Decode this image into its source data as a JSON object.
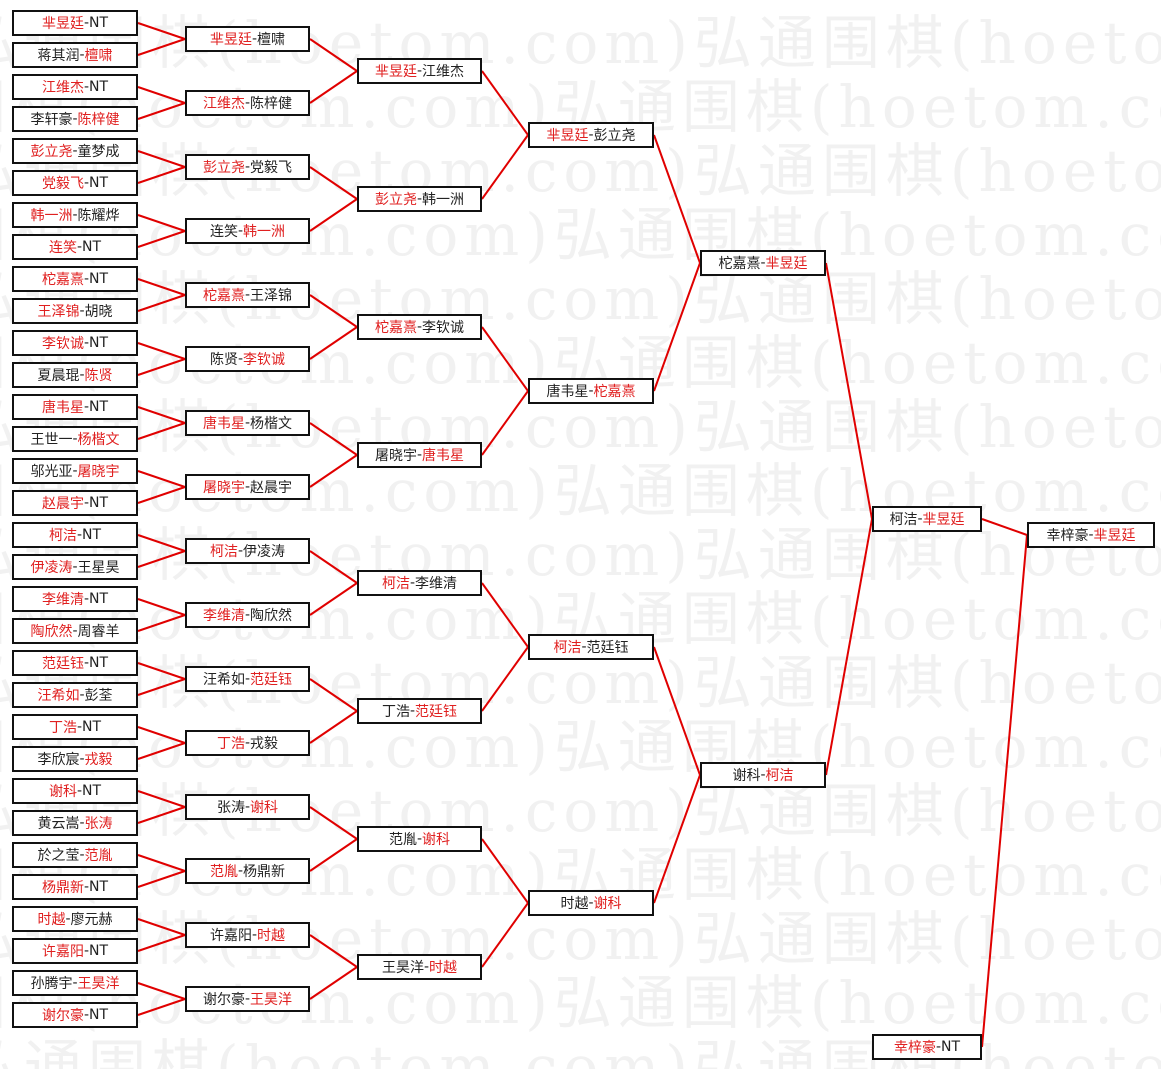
{
  "watermark": "弘通围棋(hoetom.com)弘通围棋(hoetom.com)",
  "separator": "-",
  "colors": {
    "winner": "#e02020",
    "loser": "#222222",
    "line": "#e00000",
    "border": "#111111"
  },
  "rounds": [
    [
      {
        "players": [
          "芈昱廷",
          "NT"
        ],
        "winner": 0
      },
      {
        "players": [
          "蒋其润",
          "檀啸"
        ],
        "winner": 1
      },
      {
        "players": [
          "江维杰",
          "NT"
        ],
        "winner": 0
      },
      {
        "players": [
          "李轩豪",
          "陈梓健"
        ],
        "winner": 1
      },
      {
        "players": [
          "彭立尧",
          "童梦成"
        ],
        "winner": 0
      },
      {
        "players": [
          "党毅飞",
          "NT"
        ],
        "winner": 0
      },
      {
        "players": [
          "韩一洲",
          "陈耀烨"
        ],
        "winner": 0
      },
      {
        "players": [
          "连笑",
          "NT"
        ],
        "winner": 0
      },
      {
        "players": [
          "柁嘉熹",
          "NT"
        ],
        "winner": 0
      },
      {
        "players": [
          "王泽锦",
          "胡晓"
        ],
        "winner": 0
      },
      {
        "players": [
          "李钦诚",
          "NT"
        ],
        "winner": 0
      },
      {
        "players": [
          "夏晨琨",
          "陈贤"
        ],
        "winner": 1
      },
      {
        "players": [
          "唐韦星",
          "NT"
        ],
        "winner": 0
      },
      {
        "players": [
          "王世一",
          "杨楷文"
        ],
        "winner": 1
      },
      {
        "players": [
          "邬光亚",
          "屠晓宇"
        ],
        "winner": 1
      },
      {
        "players": [
          "赵晨宇",
          "NT"
        ],
        "winner": 0
      },
      {
        "players": [
          "柯洁",
          "NT"
        ],
        "winner": 0
      },
      {
        "players": [
          "伊凌涛",
          "王星昊"
        ],
        "winner": 0
      },
      {
        "players": [
          "李维清",
          "NT"
        ],
        "winner": 0
      },
      {
        "players": [
          "陶欣然",
          "周睿羊"
        ],
        "winner": 0
      },
      {
        "players": [
          "范廷钰",
          "NT"
        ],
        "winner": 0
      },
      {
        "players": [
          "汪希如",
          "彭荃"
        ],
        "winner": 0
      },
      {
        "players": [
          "丁浩",
          "NT"
        ],
        "winner": 0
      },
      {
        "players": [
          "李欣宸",
          "戎毅"
        ],
        "winner": 1
      },
      {
        "players": [
          "谢科",
          "NT"
        ],
        "winner": 0
      },
      {
        "players": [
          "黄云嵩",
          "张涛"
        ],
        "winner": 1
      },
      {
        "players": [
          "於之莹",
          "范胤"
        ],
        "winner": 1
      },
      {
        "players": [
          "杨鼎新",
          "NT"
        ],
        "winner": 0
      },
      {
        "players": [
          "时越",
          "廖元赫"
        ],
        "winner": 0
      },
      {
        "players": [
          "许嘉阳",
          "NT"
        ],
        "winner": 0
      },
      {
        "players": [
          "孙腾宇",
          "王昊洋"
        ],
        "winner": 1
      },
      {
        "players": [
          "谢尔豪",
          "NT"
        ],
        "winner": 0
      }
    ],
    [
      {
        "players": [
          "芈昱廷",
          "檀啸"
        ],
        "winner": 0
      },
      {
        "players": [
          "江维杰",
          "陈梓健"
        ],
        "winner": 0
      },
      {
        "players": [
          "彭立尧",
          "党毅飞"
        ],
        "winner": 0
      },
      {
        "players": [
          "连笑",
          "韩一洲"
        ],
        "winner": 1
      },
      {
        "players": [
          "柁嘉熹",
          "王泽锦"
        ],
        "winner": 0
      },
      {
        "players": [
          "陈贤",
          "李钦诚"
        ],
        "winner": 1
      },
      {
        "players": [
          "唐韦星",
          "杨楷文"
        ],
        "winner": 0
      },
      {
        "players": [
          "屠晓宇",
          "赵晨宇"
        ],
        "winner": 0
      },
      {
        "players": [
          "柯洁",
          "伊凌涛"
        ],
        "winner": 0
      },
      {
        "players": [
          "李维清",
          "陶欣然"
        ],
        "winner": 0
      },
      {
        "players": [
          "汪希如",
          "范廷钰"
        ],
        "winner": 1
      },
      {
        "players": [
          "丁浩",
          "戎毅"
        ],
        "winner": 0
      },
      {
        "players": [
          "张涛",
          "谢科"
        ],
        "winner": 1
      },
      {
        "players": [
          "范胤",
          "杨鼎新"
        ],
        "winner": 0
      },
      {
        "players": [
          "许嘉阳",
          "时越"
        ],
        "winner": 1
      },
      {
        "players": [
          "谢尔豪",
          "王昊洋"
        ],
        "winner": 1
      }
    ],
    [
      {
        "players": [
          "芈昱廷",
          "江维杰"
        ],
        "winner": 0
      },
      {
        "players": [
          "彭立尧",
          "韩一洲"
        ],
        "winner": 0
      },
      {
        "players": [
          "柁嘉熹",
          "李钦诚"
        ],
        "winner": 0
      },
      {
        "players": [
          "屠晓宇",
          "唐韦星"
        ],
        "winner": 1
      },
      {
        "players": [
          "柯洁",
          "李维清"
        ],
        "winner": 0
      },
      {
        "players": [
          "丁浩",
          "范廷钰"
        ],
        "winner": 1
      },
      {
        "players": [
          "范胤",
          "谢科"
        ],
        "winner": 1
      },
      {
        "players": [
          "王昊洋",
          "时越"
        ],
        "winner": 1
      }
    ],
    [
      {
        "players": [
          "芈昱廷",
          "彭立尧"
        ],
        "winner": 0
      },
      {
        "players": [
          "唐韦星",
          "柁嘉熹"
        ],
        "winner": 1
      },
      {
        "players": [
          "柯洁",
          "范廷钰"
        ],
        "winner": 0
      },
      {
        "players": [
          "时越",
          "谢科"
        ],
        "winner": 1
      }
    ],
    [
      {
        "players": [
          "柁嘉熹",
          "芈昱廷"
        ],
        "winner": 1
      },
      {
        "players": [
          "谢科",
          "柯洁"
        ],
        "winner": 1
      }
    ],
    [
      {
        "players": [
          "柯洁",
          "芈昱廷"
        ],
        "winner": 1
      },
      {
        "players": [
          "幸梓豪",
          "NT"
        ],
        "winner": 0
      }
    ],
    [
      {
        "players": [
          "幸梓豪",
          "芈昱廷"
        ],
        "winner": 1
      }
    ]
  ]
}
